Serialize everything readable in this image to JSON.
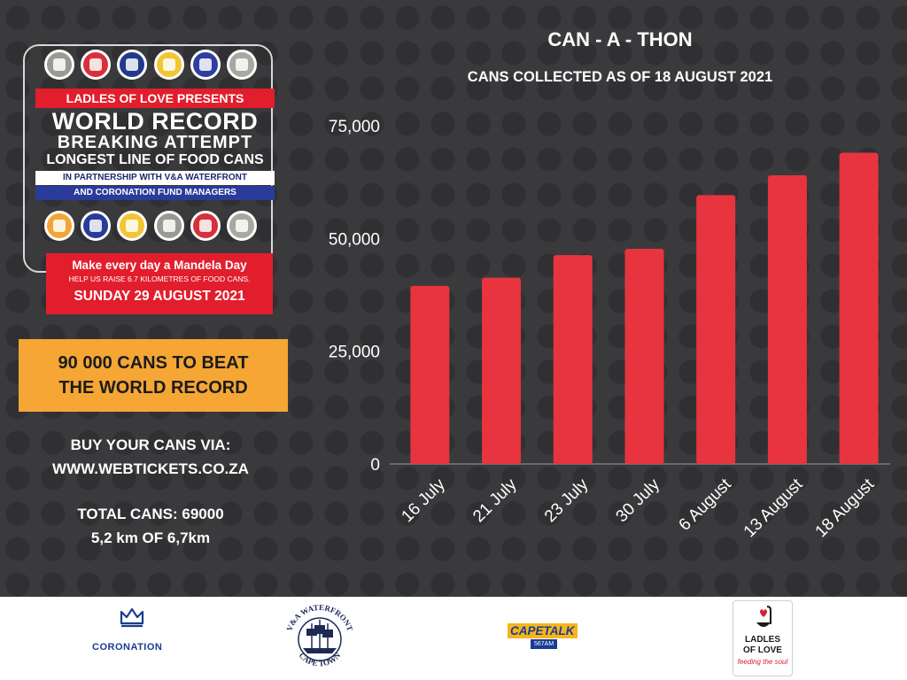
{
  "poster": {
    "presents": "LADLES OF LOVE PRESENTS",
    "world_record": "WORLD RECORD",
    "breaking_attempt": "BREAKING ATTEMPT",
    "longest_line": "LONGEST LINE OF FOOD CANS",
    "partnership": "IN PARTNERSHIP WITH V&A WATERFRONT",
    "coronation": "AND CORONATION FUND MANAGERS",
    "mandela_day": "Make every day a Mandela Day",
    "help_raise": "HELP US RAISE 6.7 KILOMETRES OF FOOD CANS.",
    "date": "SUNDAY 29 AUGUST 2021",
    "can_colors_top": [
      "#9a9a94",
      "#d8303b",
      "#233a8c",
      "#f2c532",
      "#2f3f9e",
      "#a8a8a0"
    ],
    "can_colors_bottom": [
      "#f2a536",
      "#2b3b9a",
      "#f2c532",
      "#9a9a94",
      "#d8303b",
      "#a8a8a0"
    ]
  },
  "goal": {
    "line1": "90 000 CANS TO BEAT",
    "line2": "THE WORLD RECORD"
  },
  "buy": {
    "line1": "BUY YOUR CANS VIA:",
    "line2": "WWW.WEBTICKETS.CO.ZA"
  },
  "totals": {
    "line1": "TOTAL CANS: 69000",
    "line2": "5,2 km  OF 6,7km"
  },
  "chart_data": {
    "type": "bar",
    "title": "CAN - A - THON",
    "subtitle": "CANS COLLECTED AS OF 18 AUGUST 2021",
    "categories": [
      "16 July",
      "21  July",
      "23 July",
      "30 July",
      "6 August",
      "13 August",
      "18 August"
    ],
    "values": [
      39500,
      41300,
      46300,
      47700,
      59600,
      64000,
      69000
    ],
    "ylim": [
      0,
      75000
    ],
    "yticks": [
      "0",
      "25,000",
      "50,000",
      "75,000"
    ],
    "ytick_values": [
      0,
      25000,
      50000,
      75000
    ],
    "bar_color": "#e8343f",
    "grid": false
  },
  "footer": {
    "coronation": "CORONATION",
    "va_waterfront": "V&A WATERFRONT",
    "cape_town": "CAPE TOWN",
    "capetalk": "CAPETALK",
    "capetalk_freq": "567AM",
    "ladles_name_1": "LADLES",
    "ladles_name_2": "OF LOVE",
    "ladles_tagline": "feeding the soul"
  }
}
